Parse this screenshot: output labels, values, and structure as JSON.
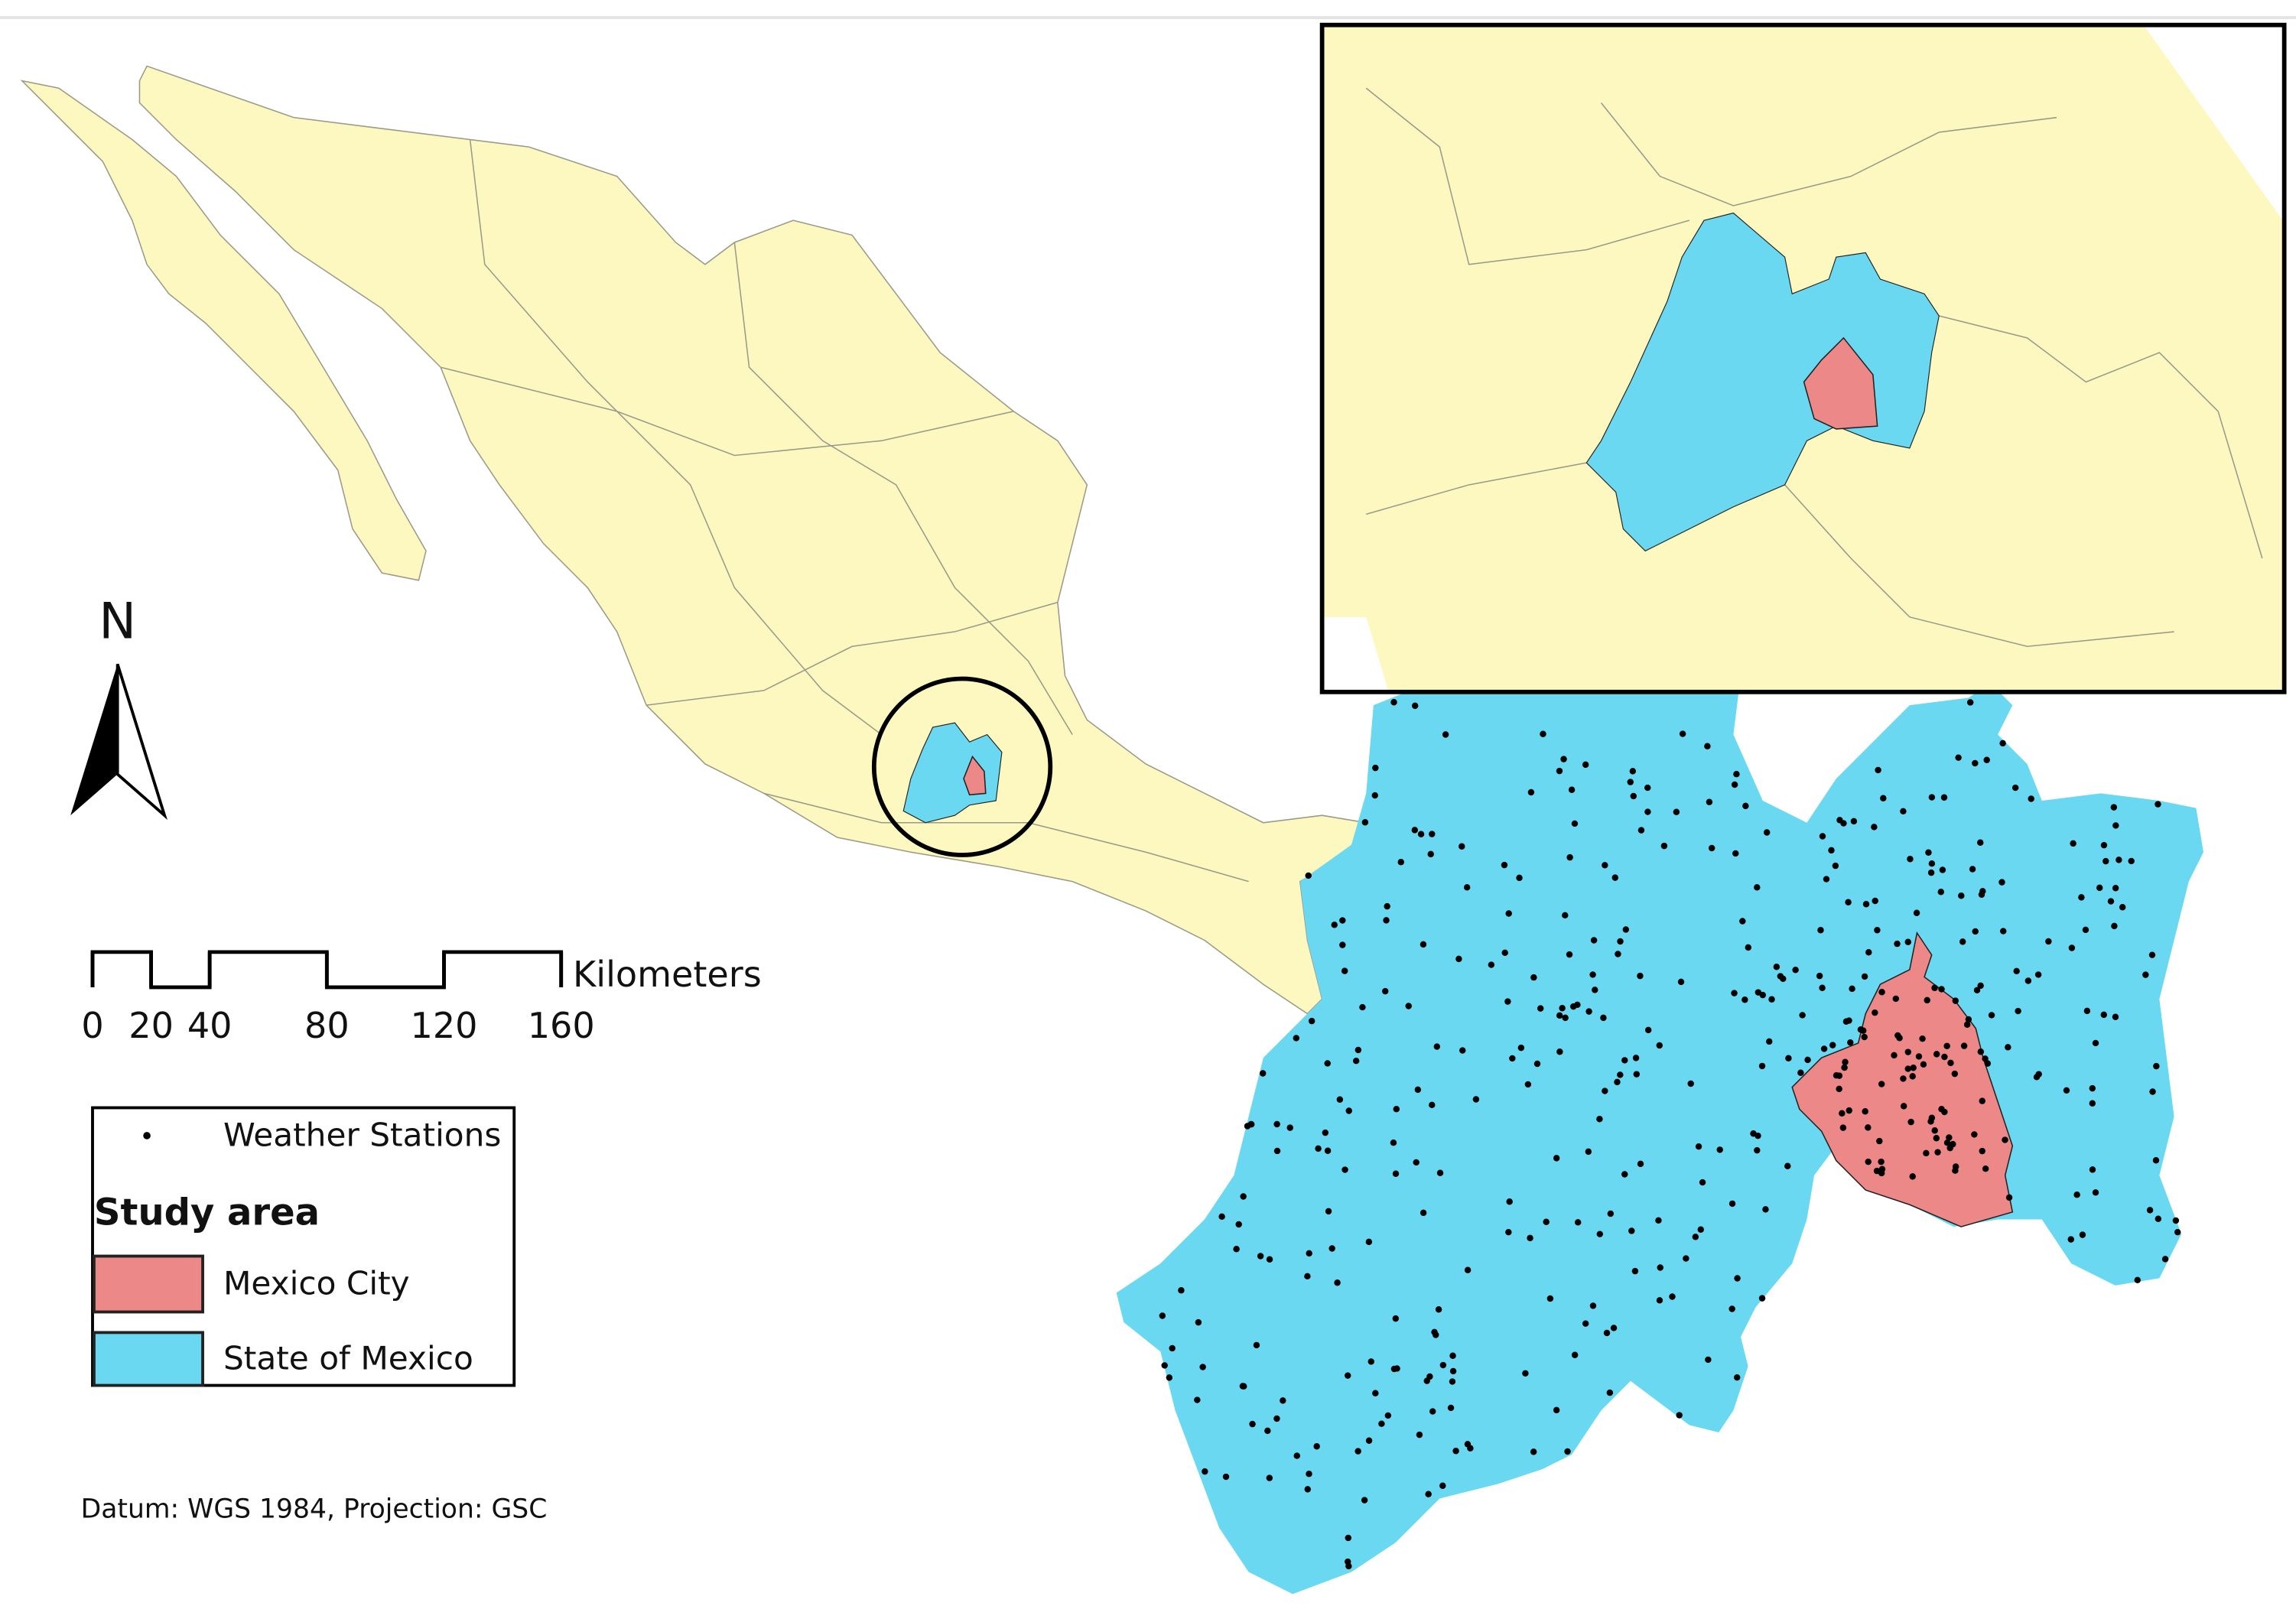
{
  "map": {
    "north_label": "N",
    "scale_bar": {
      "unit": "Kilometers",
      "ticks": [
        0,
        20,
        40,
        80,
        120,
        160
      ]
    },
    "legend": {
      "stations": "Weather Stations",
      "title": "Study area",
      "items": [
        "Mexico City",
        "State of Mexico"
      ]
    },
    "footnote": "Datum: WGS 1984, Projection: GSC"
  }
}
